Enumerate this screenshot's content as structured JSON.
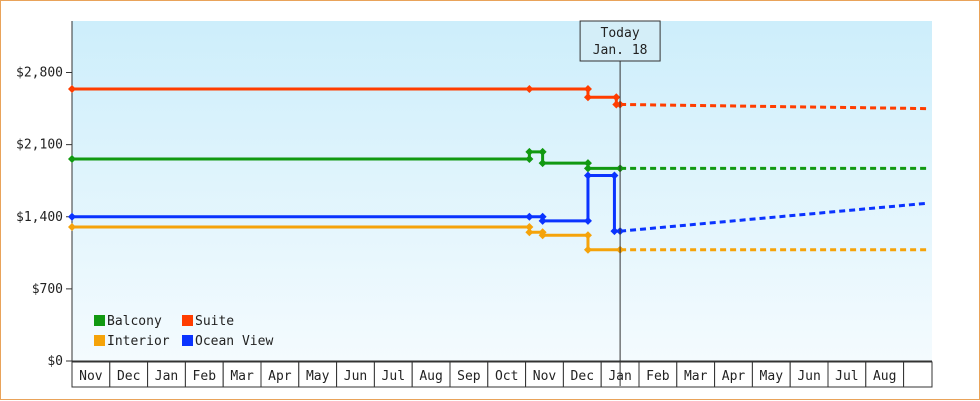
{
  "chart_data": {
    "type": "line",
    "title": "",
    "xlabel": "",
    "ylabel": "",
    "ylim": [
      0,
      3300
    ],
    "yticks": [
      {
        "value": 0,
        "label": "$0"
      },
      {
        "value": 700,
        "label": "$700"
      },
      {
        "value": 1400,
        "label": "$1,400"
      },
      {
        "value": 2100,
        "label": "$2,100"
      },
      {
        "value": 2800,
        "label": "$2,800"
      }
    ],
    "months": [
      "Nov",
      "Dec",
      "Jan",
      "Feb",
      "Mar",
      "Apr",
      "May",
      "Jun",
      "Jul",
      "Aug",
      "Sep",
      "Oct",
      "Nov",
      "Dec",
      "Jan",
      "Feb",
      "Mar",
      "Apr",
      "May",
      "Jun",
      "Jul",
      "Aug"
    ],
    "today": {
      "label": "Today",
      "date": "Jan. 18",
      "x": 14.5
    },
    "grid": false,
    "legend": {
      "placement": "bottom-left"
    },
    "series": [
      {
        "name": "Suite",
        "color": "#ff3d00",
        "points": [
          [
            0,
            2640
          ],
          [
            12.1,
            2640
          ],
          [
            13.65,
            2640
          ],
          [
            13.65,
            2560
          ],
          [
            14.4,
            2560
          ],
          [
            14.4,
            2490
          ],
          [
            14.5,
            2490
          ]
        ],
        "markers": [
          [
            0,
            2640
          ],
          [
            12.1,
            2640
          ],
          [
            13.65,
            2640
          ],
          [
            13.65,
            2560
          ],
          [
            14.4,
            2560
          ],
          [
            14.4,
            2490
          ],
          [
            14.5,
            2490
          ]
        ],
        "forecast": [
          [
            14.5,
            2490
          ],
          [
            22.6,
            2450
          ]
        ]
      },
      {
        "name": "Balcony",
        "color": "#119911",
        "points": [
          [
            0,
            1960
          ],
          [
            12.1,
            1960
          ],
          [
            12.1,
            2030
          ],
          [
            12.45,
            2030
          ],
          [
            12.45,
            1920
          ],
          [
            13.65,
            1920
          ],
          [
            13.65,
            1870
          ],
          [
            14.5,
            1870
          ]
        ],
        "markers": [
          [
            0,
            1960
          ],
          [
            12.1,
            1960
          ],
          [
            12.1,
            2030
          ],
          [
            12.45,
            2030
          ],
          [
            12.45,
            1920
          ],
          [
            13.65,
            1920
          ],
          [
            13.65,
            1870
          ],
          [
            14.5,
            1870
          ]
        ],
        "forecast": [
          [
            14.5,
            1870
          ],
          [
            22.6,
            1870
          ]
        ]
      },
      {
        "name": "Ocean View",
        "color": "#0a33ff",
        "points": [
          [
            0,
            1400
          ],
          [
            12.1,
            1400
          ],
          [
            12.1,
            1400
          ],
          [
            12.45,
            1400
          ],
          [
            12.45,
            1360
          ],
          [
            13.65,
            1360
          ],
          [
            13.65,
            1800
          ],
          [
            14.35,
            1800
          ],
          [
            14.35,
            1260
          ],
          [
            14.5,
            1260
          ]
        ],
        "markers": [
          [
            0,
            1400
          ],
          [
            12.1,
            1400
          ],
          [
            12.45,
            1400
          ],
          [
            12.45,
            1360
          ],
          [
            13.65,
            1360
          ],
          [
            13.65,
            1800
          ],
          [
            14.35,
            1800
          ],
          [
            14.35,
            1260
          ],
          [
            14.5,
            1260
          ]
        ],
        "forecast": [
          [
            14.5,
            1260
          ],
          [
            22.6,
            1530
          ]
        ]
      },
      {
        "name": "Interior",
        "color": "#f5a30a",
        "points": [
          [
            0,
            1300
          ],
          [
            12.1,
            1300
          ],
          [
            12.1,
            1250
          ],
          [
            12.45,
            1250
          ],
          [
            12.45,
            1220
          ],
          [
            13.65,
            1220
          ],
          [
            13.65,
            1080
          ],
          [
            14.5,
            1080
          ]
        ],
        "markers": [
          [
            0,
            1300
          ],
          [
            12.1,
            1300
          ],
          [
            12.1,
            1250
          ],
          [
            12.45,
            1250
          ],
          [
            12.45,
            1220
          ],
          [
            13.65,
            1220
          ],
          [
            13.65,
            1080
          ],
          [
            14.5,
            1080
          ]
        ],
        "forecast": [
          [
            14.5,
            1080
          ],
          [
            22.6,
            1080
          ]
        ]
      }
    ],
    "legend_order": [
      "Balcony",
      "Suite",
      "Interior",
      "Ocean View"
    ]
  }
}
